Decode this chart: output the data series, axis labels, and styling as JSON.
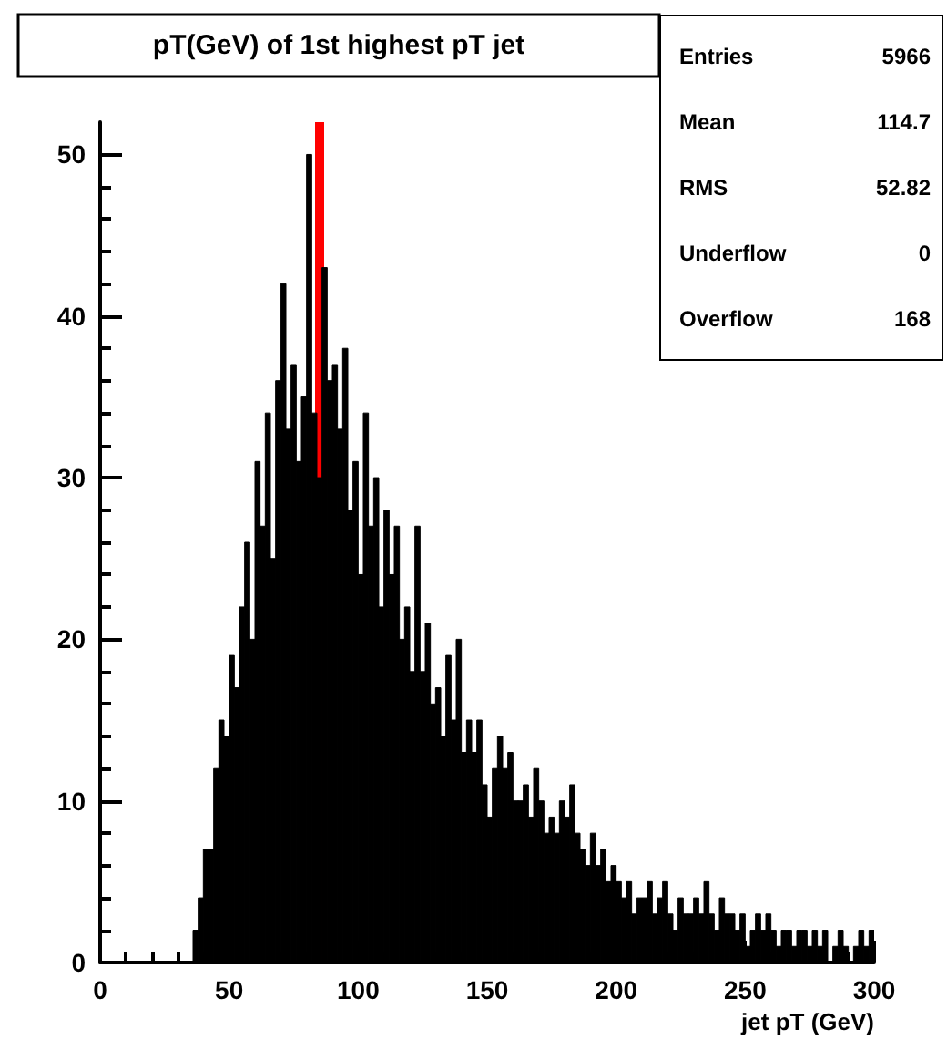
{
  "chart_data": {
    "type": "histogram",
    "title": "pT(GeV) of 1st highest pT jet",
    "xlabel": "jet pT (GeV)",
    "bins": [
      30,
      32,
      34,
      36,
      38,
      40,
      42,
      44,
      46,
      48,
      50,
      52,
      54,
      56,
      58,
      60,
      62,
      64,
      66,
      68,
      70,
      72,
      74,
      76,
      78,
      80,
      82,
      84,
      86,
      88,
      90,
      92,
      94,
      96,
      98,
      100,
      102,
      104,
      106,
      108,
      110,
      112,
      114,
      116,
      118,
      120,
      122,
      124,
      126,
      128,
      130,
      132,
      134,
      136,
      138,
      140,
      142,
      144,
      146,
      148,
      150,
      152,
      154,
      156,
      158,
      160,
      162,
      164,
      166,
      168,
      170,
      172,
      174,
      176,
      178,
      180,
      182,
      184,
      186,
      188,
      190,
      192,
      194,
      196,
      198,
      200,
      202,
      204,
      206,
      208,
      210,
      212,
      214,
      216,
      218,
      220,
      222,
      224,
      226,
      228,
      230,
      232,
      234,
      236,
      238,
      240,
      242,
      244,
      246,
      248,
      250,
      252,
      254,
      256,
      258,
      260,
      262,
      264,
      266,
      268,
      270,
      272,
      274,
      276,
      278,
      280,
      282,
      284,
      286,
      288,
      290,
      292,
      294,
      296,
      298,
      300
    ],
    "values": [
      0,
      0,
      0,
      2,
      4,
      7,
      7,
      12,
      15,
      14,
      19,
      17,
      22,
      26,
      20,
      31,
      27,
      34,
      25,
      36,
      42,
      33,
      37,
      31,
      35,
      50,
      34,
      30,
      43,
      36,
      37,
      33,
      38,
      28,
      31,
      24,
      34,
      27,
      30,
      22,
      28,
      24,
      27,
      20,
      22,
      18,
      27,
      18,
      21,
      16,
      17,
      14,
      19,
      15,
      20,
      13,
      15,
      13,
      15,
      11,
      9,
      12,
      14,
      12,
      13,
      10,
      10,
      11,
      9,
      12,
      10,
      8,
      9,
      8,
      10,
      9,
      11,
      8,
      7,
      6,
      8,
      6,
      7,
      5,
      6,
      5,
      4,
      5,
      3,
      4,
      4,
      5,
      3,
      4,
      5,
      3,
      2,
      4,
      3,
      3,
      4,
      3,
      5,
      3,
      2,
      4,
      3,
      3,
      2,
      3,
      1,
      2,
      3,
      2,
      3,
      2,
      1,
      2,
      2,
      1,
      2,
      2,
      1,
      2,
      1,
      2,
      0,
      1,
      2,
      1,
      0,
      1,
      2,
      1,
      2
    ],
    "color": "#000000",
    "xlim": [
      0,
      300
    ],
    "xticks": [
      0,
      50,
      100,
      150,
      200,
      250,
      300
    ],
    "ylim": [
      0,
      52
    ],
    "yticks": [
      0,
      10,
      20,
      30,
      40,
      50
    ],
    "grid": false,
    "ref_lines": [
      {
        "axis": "x",
        "value": 85,
        "color": "#ff0000"
      }
    ],
    "annotations": [
      "Entries 5966",
      "Mean 114.7",
      "RMS 52.82",
      "Underflow 0",
      "Overflow 168"
    ]
  }
}
